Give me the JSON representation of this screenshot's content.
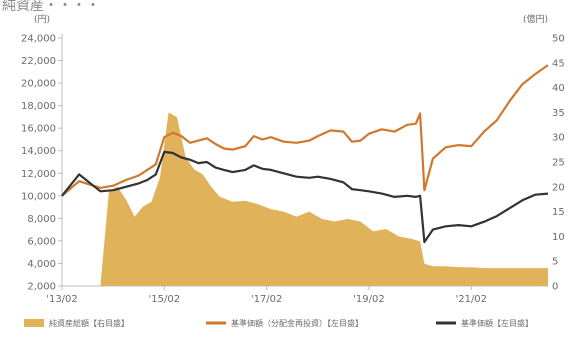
{
  "chart_data": {
    "type": "area+line",
    "title_fragment": "純資産・・・・",
    "left_axis": {
      "unit_label": "(円)",
      "ylim": [
        2000,
        24000
      ],
      "ticks": [
        2000,
        4000,
        6000,
        8000,
        10000,
        12000,
        14000,
        16000,
        18000,
        20000,
        22000,
        24000
      ],
      "tick_labels": [
        "2,000",
        "4,000",
        "6,000",
        "8,000",
        "10,000",
        "12,000",
        "14,000",
        "16,000",
        "18,000",
        "20,000",
        "22,000",
        "24,000"
      ]
    },
    "right_axis": {
      "unit_label": "(億円)",
      "ylim": [
        0,
        500
      ],
      "ticks": [
        0,
        50,
        100,
        150,
        200,
        250,
        300,
        350,
        400,
        450,
        500
      ],
      "tick_labels": [
        "0",
        "5",
        "10",
        "15",
        "20",
        "25",
        "30",
        "35",
        "40",
        "45",
        "50"
      ]
    },
    "x_axis": {
      "range": [
        "2013-02",
        "2022-08"
      ],
      "ticks": [
        "2013-02",
        "2015-02",
        "2017-02",
        "2019-02",
        "2021-02"
      ],
      "tick_labels": [
        "'13/02",
        "'15/02",
        "'17/02",
        "'19/02",
        "'21/02"
      ]
    },
    "colors": {
      "net_assets": "#e0b25a",
      "nav_reinvested": "#d0782e",
      "nav": "#333333",
      "axis": "#bdbdbd"
    },
    "series": [
      {
        "name": "純資産総額【右目盛】",
        "kind": "area",
        "axis": "right",
        "x": [
          "2013-02",
          "2013-11",
          "2014-01",
          "2014-03",
          "2014-05",
          "2014-07",
          "2014-09",
          "2014-11",
          "2015-01",
          "2015-03",
          "2015-05",
          "2015-07",
          "2015-09",
          "2015-11",
          "2016-01",
          "2016-03",
          "2016-06",
          "2016-09",
          "2016-12",
          "2017-03",
          "2017-06",
          "2017-09",
          "2017-12",
          "2018-03",
          "2018-06",
          "2018-09",
          "2018-12",
          "2019-03",
          "2019-06",
          "2019-09",
          "2019-12",
          "2020-02",
          "2020-03",
          "2020-05",
          "2020-08",
          "2020-11",
          "2021-02",
          "2021-05",
          "2021-08",
          "2021-11",
          "2022-02",
          "2022-05",
          "2022-08"
        ],
        "values": [
          0,
          0,
          190,
          200,
          175,
          140,
          160,
          170,
          220,
          350,
          340,
          260,
          235,
          225,
          200,
          180,
          170,
          172,
          165,
          155,
          150,
          140,
          150,
          135,
          130,
          135,
          130,
          110,
          115,
          100,
          95,
          90,
          45,
          40,
          40,
          38,
          38,
          36,
          36,
          36,
          36,
          36,
          36
        ]
      },
      {
        "name": "基準価額（分配金再投資）【左目盛】",
        "kind": "line",
        "axis": "left",
        "x": [
          "2013-02",
          "2013-06",
          "2013-11",
          "2014-02",
          "2014-05",
          "2014-08",
          "2014-10",
          "2014-12",
          "2015-02",
          "2015-04",
          "2015-06",
          "2015-08",
          "2015-10",
          "2015-12",
          "2016-02",
          "2016-04",
          "2016-06",
          "2016-09",
          "2016-11",
          "2017-01",
          "2017-03",
          "2017-06",
          "2017-09",
          "2017-12",
          "2018-02",
          "2018-05",
          "2018-08",
          "2018-10",
          "2018-12",
          "2019-02",
          "2019-05",
          "2019-08",
          "2019-11",
          "2020-01",
          "2020-02",
          "2020-03",
          "2020-05",
          "2020-08",
          "2020-11",
          "2021-02",
          "2021-05",
          "2021-08",
          "2021-11",
          "2022-02",
          "2022-05",
          "2022-08"
        ],
        "values": [
          10000,
          11300,
          10700,
          10900,
          11400,
          11800,
          12300,
          12800,
          15200,
          15600,
          15300,
          14700,
          14900,
          15100,
          14600,
          14200,
          14100,
          14400,
          15300,
          15000,
          15200,
          14800,
          14700,
          14900,
          15300,
          15800,
          15700,
          14800,
          14900,
          15500,
          15900,
          15700,
          16300,
          16400,
          17300,
          10500,
          13300,
          14300,
          14500,
          14400,
          15700,
          16700,
          18400,
          19900,
          20800,
          21600
        ]
      },
      {
        "name": "基準価額【左目盛】",
        "kind": "line",
        "axis": "left",
        "x": [
          "2013-02",
          "2013-06",
          "2013-11",
          "2014-02",
          "2014-05",
          "2014-08",
          "2014-10",
          "2014-12",
          "2015-02",
          "2015-04",
          "2015-06",
          "2015-08",
          "2015-10",
          "2015-12",
          "2016-02",
          "2016-04",
          "2016-06",
          "2016-09",
          "2016-11",
          "2017-01",
          "2017-03",
          "2017-06",
          "2017-09",
          "2017-12",
          "2018-02",
          "2018-05",
          "2018-08",
          "2018-10",
          "2018-12",
          "2019-02",
          "2019-05",
          "2019-08",
          "2019-11",
          "2020-01",
          "2020-02",
          "2020-03",
          "2020-05",
          "2020-08",
          "2020-11",
          "2021-02",
          "2021-05",
          "2021-08",
          "2021-11",
          "2022-02",
          "2022-05",
          "2022-08"
        ],
        "values": [
          10000,
          11900,
          10400,
          10500,
          10800,
          11100,
          11400,
          11900,
          13900,
          13800,
          13400,
          13200,
          12900,
          13000,
          12500,
          12300,
          12100,
          12300,
          12700,
          12400,
          12300,
          12000,
          11700,
          11600,
          11700,
          11500,
          11200,
          10600,
          10500,
          10400,
          10200,
          9900,
          10000,
          9900,
          10000,
          5900,
          7000,
          7300,
          7400,
          7300,
          7700,
          8200,
          8900,
          9600,
          10100,
          10200
        ]
      }
    ],
    "legend": {
      "position": "bottom"
    }
  }
}
